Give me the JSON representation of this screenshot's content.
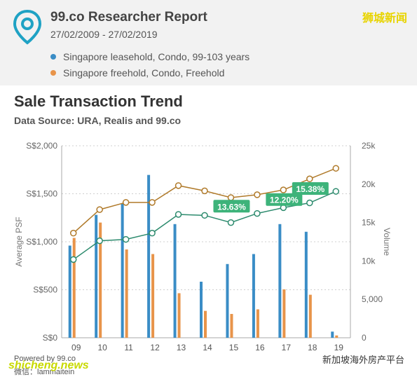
{
  "header": {
    "title": "99.co Researcher Report",
    "date_range": "27/02/2009 - 27/02/2019",
    "legend": [
      {
        "label": "Singapore leasehold, Condo, 99-103 years",
        "color": "#3a8dc6"
      },
      {
        "label": "Singapore freehold, Condo, Freehold",
        "color": "#e8944a"
      }
    ],
    "logo_icon": "location-pin-icon",
    "watermark_top": "狮城新闻"
  },
  "chart_data": {
    "type": "bar+line",
    "title": "Sale Transaction Trend",
    "subtitle": "Data Source: URA, Realis and 99.co",
    "categories": [
      "09",
      "10",
      "11",
      "12",
      "13",
      "14",
      "15",
      "16",
      "17",
      "18",
      "19"
    ],
    "y_left": {
      "label": "Average PSF",
      "ticks": [
        "S$0",
        "S$500",
        "S$1,000",
        "S$1,500",
        "S$2,000"
      ],
      "range": [
        0,
        2000
      ]
    },
    "y_right": {
      "label": "Volume",
      "ticks": [
        "0",
        "5,000",
        "10k",
        "15k",
        "20k",
        "25k"
      ],
      "range": [
        0,
        25000
      ]
    },
    "bars": [
      {
        "name": "Singapore leasehold, Condo, 99-103 years",
        "color": "#3a8dc6",
        "values": [
          12000,
          16000,
          17500,
          21200,
          14800,
          7300,
          9600,
          10900,
          14800,
          13800,
          800
        ]
      },
      {
        "name": "Singapore freehold, Condo, Freehold",
        "color": "#e8944a",
        "values": [
          13000,
          15000,
          11500,
          10900,
          5800,
          3500,
          3100,
          3700,
          6300,
          5600,
          300
        ]
      }
    ],
    "lines": [
      {
        "name": "Singapore leasehold, Condo, 99-103 years",
        "color": "#2d8b6e",
        "values": [
          815,
          1010,
          1025,
          1090,
          1285,
          1275,
          1200,
          1295,
          1355,
          1405,
          1525
        ]
      },
      {
        "name": "Singapore freehold, Condo, Freehold",
        "color": "#b07a2a",
        "values": [
          1090,
          1335,
          1410,
          1410,
          1585,
          1530,
          1460,
          1490,
          1540,
          1655,
          1765
        ]
      }
    ],
    "annotations": [
      {
        "label": "13.63%",
        "category": "15",
        "value": 1370
      },
      {
        "label": "12.20%",
        "category": "17",
        "value": 1440
      },
      {
        "label": "15.38%",
        "category": "18",
        "value": 1555
      }
    ]
  },
  "footer": {
    "powered": "Powered by 99.co",
    "handle": "微信：lammaitein",
    "watermark_left": "shicheng.news",
    "watermark_right": "新加坡海外房产平台"
  }
}
